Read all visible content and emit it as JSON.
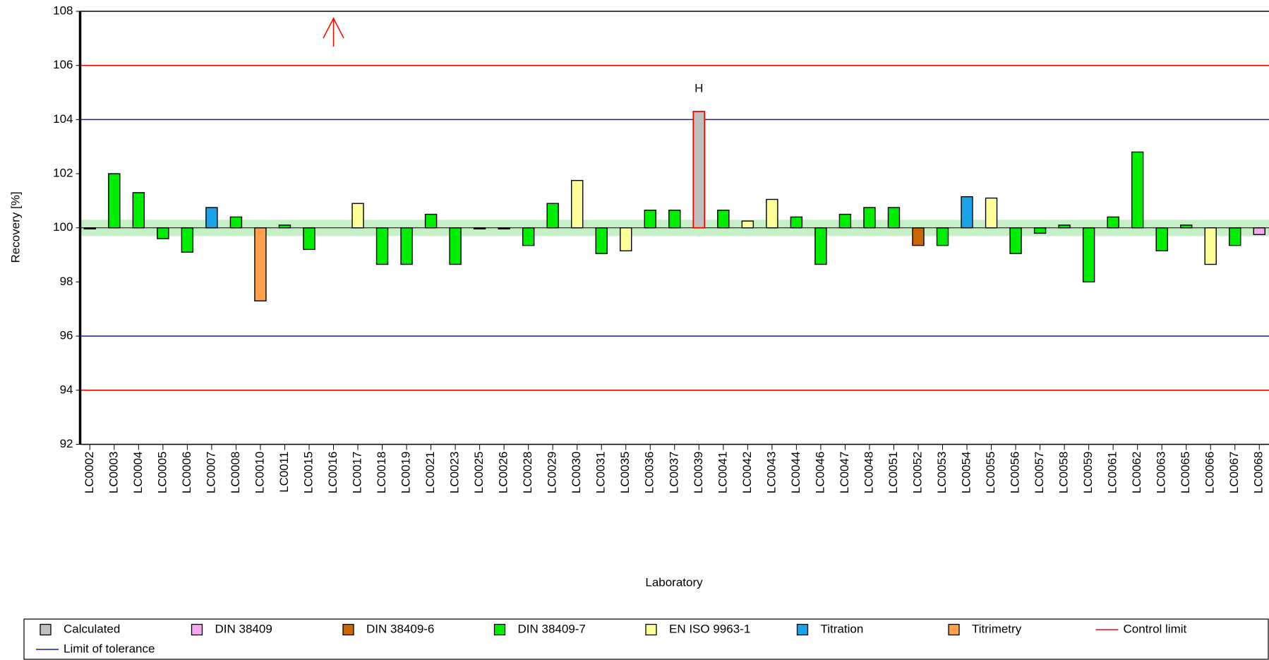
{
  "chart_data": {
    "type": "bar",
    "y_label": "Recovery [%]",
    "x_label": "Laboratory",
    "categories": [
      "LC0002",
      "LC0003",
      "LC0004",
      "LC0005",
      "LC0006",
      "LC0007",
      "LC0008",
      "LC0010",
      "LC0011",
      "LC0015",
      "LC0016",
      "LC0017",
      "LC0018",
      "LC0019",
      "LC0021",
      "LC0023",
      "LC0025",
      "LC0026",
      "LC0028",
      "LC0029",
      "LC0030",
      "LC0031",
      "LC0035",
      "LC0036",
      "LC0037",
      "LC0039",
      "LC0041",
      "LC0042",
      "LC0043",
      "LC0044",
      "LC0046",
      "LC0047",
      "LC0048",
      "LC0051",
      "LC0052",
      "LC0053",
      "LC0054",
      "LC0055",
      "LC0056",
      "LC0057",
      "LC0058",
      "LC0059",
      "LC0061",
      "LC0062",
      "LC0063",
      "LC0065",
      "LC0066",
      "LC0067",
      "LC0068"
    ],
    "bar_base": 100,
    "series": [
      {
        "name": "Calculated",
        "color": "#c0c0c0",
        "values": [
          null,
          null,
          null,
          null,
          null,
          null,
          null,
          null,
          null,
          null,
          null,
          null,
          null,
          null,
          null,
          null,
          null,
          null,
          null,
          null,
          null,
          null,
          null,
          null,
          null,
          104.3,
          null,
          null,
          null,
          null,
          null,
          null,
          null,
          null,
          null,
          null,
          null,
          null,
          null,
          null,
          null,
          null,
          null,
          null,
          null,
          null,
          null,
          null,
          null
        ]
      },
      {
        "name": "DIN 38409",
        "color": "#f7a8f0",
        "values": [
          null,
          null,
          null,
          null,
          null,
          null,
          null,
          null,
          null,
          null,
          null,
          null,
          null,
          null,
          null,
          null,
          null,
          null,
          null,
          null,
          null,
          null,
          null,
          null,
          null,
          null,
          null,
          null,
          null,
          null,
          null,
          null,
          null,
          null,
          null,
          null,
          null,
          null,
          null,
          null,
          null,
          null,
          null,
          null,
          null,
          null,
          null,
          null,
          99.75
        ]
      },
      {
        "name": "DIN 38409-6",
        "color": "#cc6600",
        "values": [
          null,
          null,
          null,
          null,
          null,
          null,
          null,
          null,
          null,
          null,
          null,
          null,
          null,
          null,
          null,
          null,
          null,
          null,
          null,
          null,
          null,
          null,
          null,
          null,
          null,
          null,
          null,
          null,
          null,
          null,
          null,
          null,
          null,
          null,
          99.35,
          null,
          null,
          null,
          null,
          null,
          null,
          null,
          null,
          null,
          null,
          null,
          null,
          null,
          null
        ]
      },
      {
        "name": "DIN 38409-7",
        "color": "#00ee00",
        "values": [
          100,
          102.0,
          101.3,
          99.6,
          99.1,
          null,
          100.4,
          null,
          100.1,
          99.2,
          null,
          null,
          98.65,
          98.65,
          100.5,
          98.65,
          100,
          100,
          99.35,
          100.9,
          null,
          99.05,
          null,
          100.65,
          100.65,
          null,
          100.65,
          null,
          null,
          100.4,
          98.65,
          100.5,
          100.75,
          100.75,
          null,
          99.35,
          null,
          null,
          99.05,
          99.8,
          100.1,
          98.0,
          100.4,
          102.8,
          99.15,
          100.1,
          null,
          99.35,
          null
        ]
      },
      {
        "name": "EN ISO 9963-1",
        "color": "#ffff99",
        "values": [
          null,
          null,
          null,
          null,
          null,
          null,
          null,
          null,
          null,
          null,
          null,
          100.9,
          null,
          null,
          null,
          null,
          null,
          null,
          null,
          null,
          101.75,
          null,
          99.15,
          null,
          null,
          null,
          null,
          100.25,
          101.05,
          null,
          null,
          null,
          null,
          null,
          null,
          null,
          null,
          101.1,
          null,
          null,
          null,
          null,
          null,
          null,
          null,
          null,
          98.65,
          null,
          null
        ]
      },
      {
        "name": "Titration",
        "color": "#1aa3e8",
        "values": [
          null,
          null,
          null,
          null,
          null,
          100.75,
          null,
          null,
          null,
          null,
          null,
          null,
          null,
          null,
          null,
          null,
          null,
          null,
          null,
          null,
          null,
          null,
          null,
          null,
          null,
          null,
          null,
          null,
          null,
          null,
          null,
          null,
          null,
          null,
          null,
          null,
          101.15,
          null,
          null,
          null,
          null,
          null,
          null,
          null,
          null,
          null,
          null,
          null,
          null
        ]
      },
      {
        "name": "Titrimetry",
        "color": "#ffa04d",
        "values": [
          null,
          null,
          null,
          null,
          null,
          null,
          null,
          97.3,
          null,
          null,
          null,
          null,
          null,
          null,
          null,
          null,
          null,
          null,
          null,
          null,
          null,
          null,
          null,
          null,
          null,
          null,
          null,
          null,
          null,
          null,
          null,
          null,
          null,
          null,
          null,
          null,
          null,
          null,
          null,
          null,
          null,
          null,
          null,
          null,
          null,
          null,
          null,
          null,
          null
        ]
      }
    ],
    "hlines": [
      {
        "name": "Control limit",
        "color": "#ff0000",
        "values": [
          94,
          106
        ]
      },
      {
        "name": "Limit of tolerance",
        "color": "#1a1aa6",
        "values": [
          96,
          104
        ]
      }
    ],
    "bands": [
      {
        "range": [
          99.7,
          100.3
        ],
        "color": "#c6f0c6"
      }
    ],
    "annotations": [
      {
        "text": "H",
        "x": "LC0039",
        "color": "#ff0000"
      }
    ],
    "ylim": [
      92,
      108
    ],
    "yticks": [
      92,
      94,
      96,
      98,
      100,
      102,
      104,
      106,
      108
    ]
  }
}
